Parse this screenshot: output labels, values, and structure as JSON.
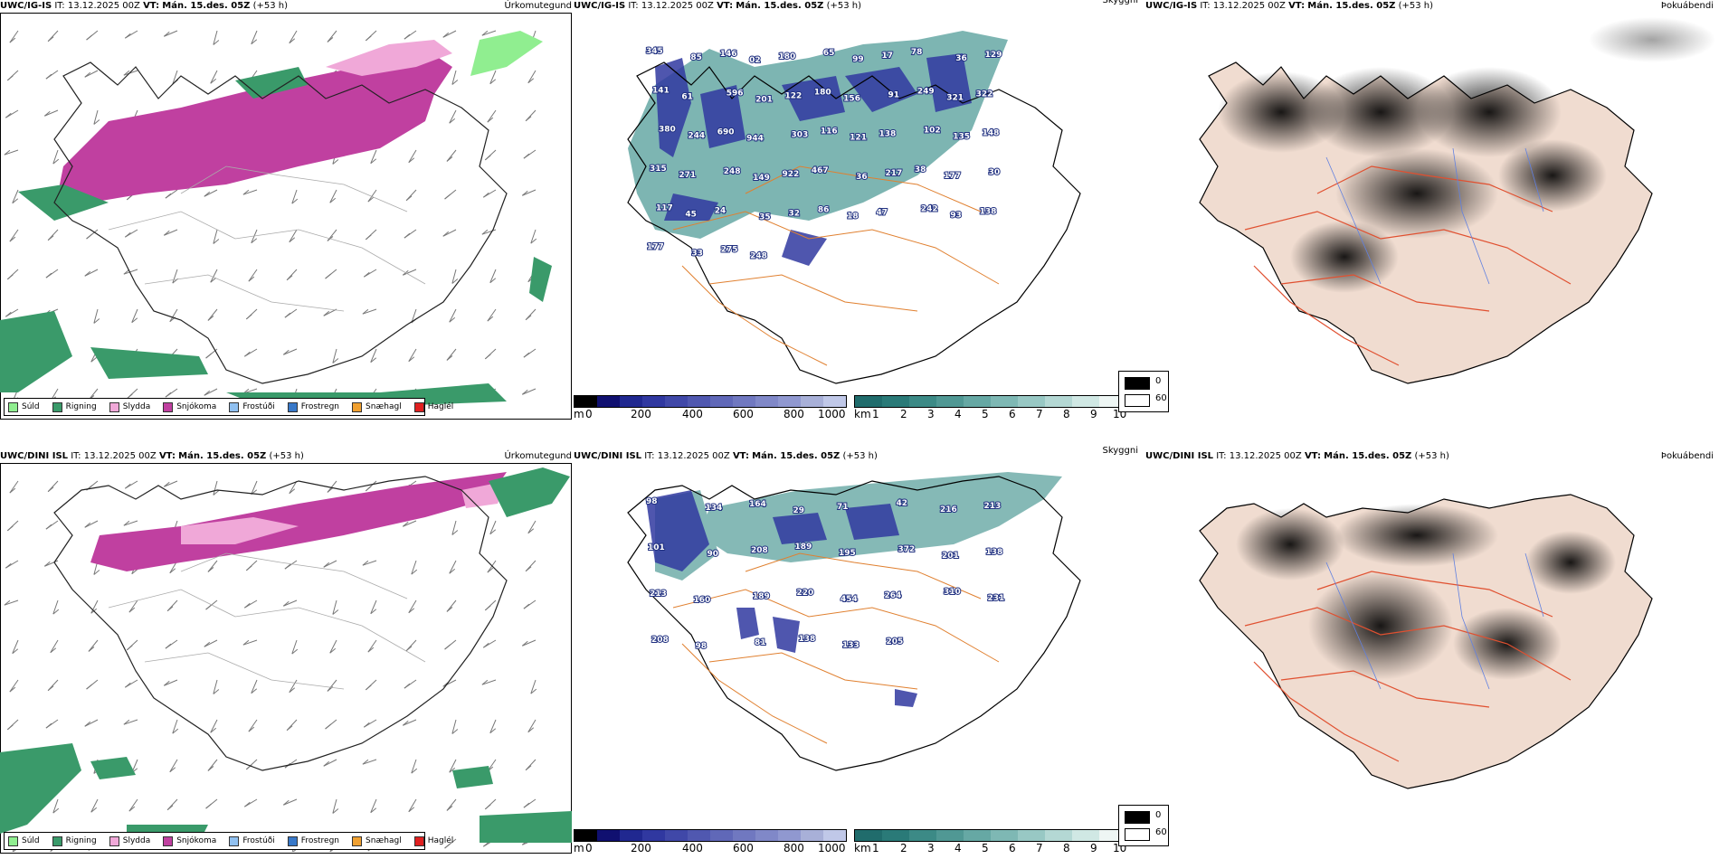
{
  "rows": [
    {
      "model": "UWC/IG-IS",
      "precip_title": "Úrkomutegund",
      "cloud_title": "Skyggni",
      "fog_title": "Þokuábendi",
      "it_label": "IT:",
      "it_value": "13.12.2025 00Z",
      "vt_label": "VT:",
      "vt_value": "Mán. 15.des. 05Z",
      "lead": "(+53 h)",
      "numbers": [
        "345",
        "85",
        "146",
        "02",
        "180",
        "65",
        "99",
        "17",
        "78",
        "36",
        "129",
        "141",
        "61",
        "596",
        "201",
        "122",
        "180",
        "156",
        "91",
        "249",
        "321",
        "322",
        "380",
        "244",
        "690",
        "944",
        "303",
        "116",
        "121",
        "138",
        "102",
        "135",
        "148",
        "315",
        "271",
        "248",
        "149",
        "922",
        "467",
        "36",
        "217",
        "38",
        "177",
        "30",
        "117",
        "45",
        "24",
        "35",
        "32",
        "86",
        "18",
        "47",
        "242",
        "93",
        "138",
        "177",
        "33",
        "275",
        "248"
      ]
    },
    {
      "model": "UWC/DINI ISL",
      "precip_title": "Úrkomutegund",
      "cloud_title": "Skyggni",
      "fog_title": "Þokuábendi",
      "it_label": "IT:",
      "it_value": "13.12.2025 00Z",
      "vt_label": "VT:",
      "vt_value": "Mán. 15.des. 05Z",
      "lead": "(+53 h)",
      "numbers": [
        "98",
        "134",
        "164",
        "29",
        "71",
        "42",
        "216",
        "213",
        "101",
        "90",
        "208",
        "189",
        "195",
        "372",
        "201",
        "138",
        "213",
        "160",
        "189",
        "220",
        "454",
        "264",
        "310",
        "231",
        "208",
        "98",
        "81",
        "138",
        "133",
        "205"
      ]
    }
  ],
  "precip_legend": [
    {
      "label": "Súld",
      "color": "#90ee90"
    },
    {
      "label": "Rigning",
      "color": "#3a9a6a"
    },
    {
      "label": "Slydda",
      "color": "#f0a8d8"
    },
    {
      "label": "Snjókoma",
      "color": "#c040a0"
    },
    {
      "label": "Frostúði",
      "color": "#90c0f0"
    },
    {
      "label": "Frostregn",
      "color": "#3878c8"
    },
    {
      "label": "Snæhagl",
      "color": "#f0a030"
    },
    {
      "label": "Haglél",
      "color": "#e02020"
    }
  ],
  "ceiling_bar": {
    "unit": "m",
    "ticks": [
      "0",
      "200",
      "400",
      "600",
      "800",
      "1000"
    ],
    "colors": [
      "#000000",
      "#101070",
      "#202890",
      "#3038a0",
      "#4048a8",
      "#5058b0",
      "#6068b8",
      "#7078c0",
      "#8088c8",
      "#9098d0",
      "#a8b0d8",
      "#c0c8e8"
    ]
  },
  "visibility_bar": {
    "unit": "km",
    "ticks": [
      "1",
      "2",
      "3",
      "4",
      "5",
      "6",
      "7",
      "8",
      "9",
      "10"
    ],
    "colors": [
      "#206c6c",
      "#2a7a78",
      "#3c8a86",
      "#509894",
      "#66a8a4",
      "#7eb8b4",
      "#98c8c4",
      "#b4d8d4",
      "#d0e8e4",
      "#eef6f4"
    ]
  },
  "fog_legend": {
    "low": "0",
    "high": "60"
  }
}
